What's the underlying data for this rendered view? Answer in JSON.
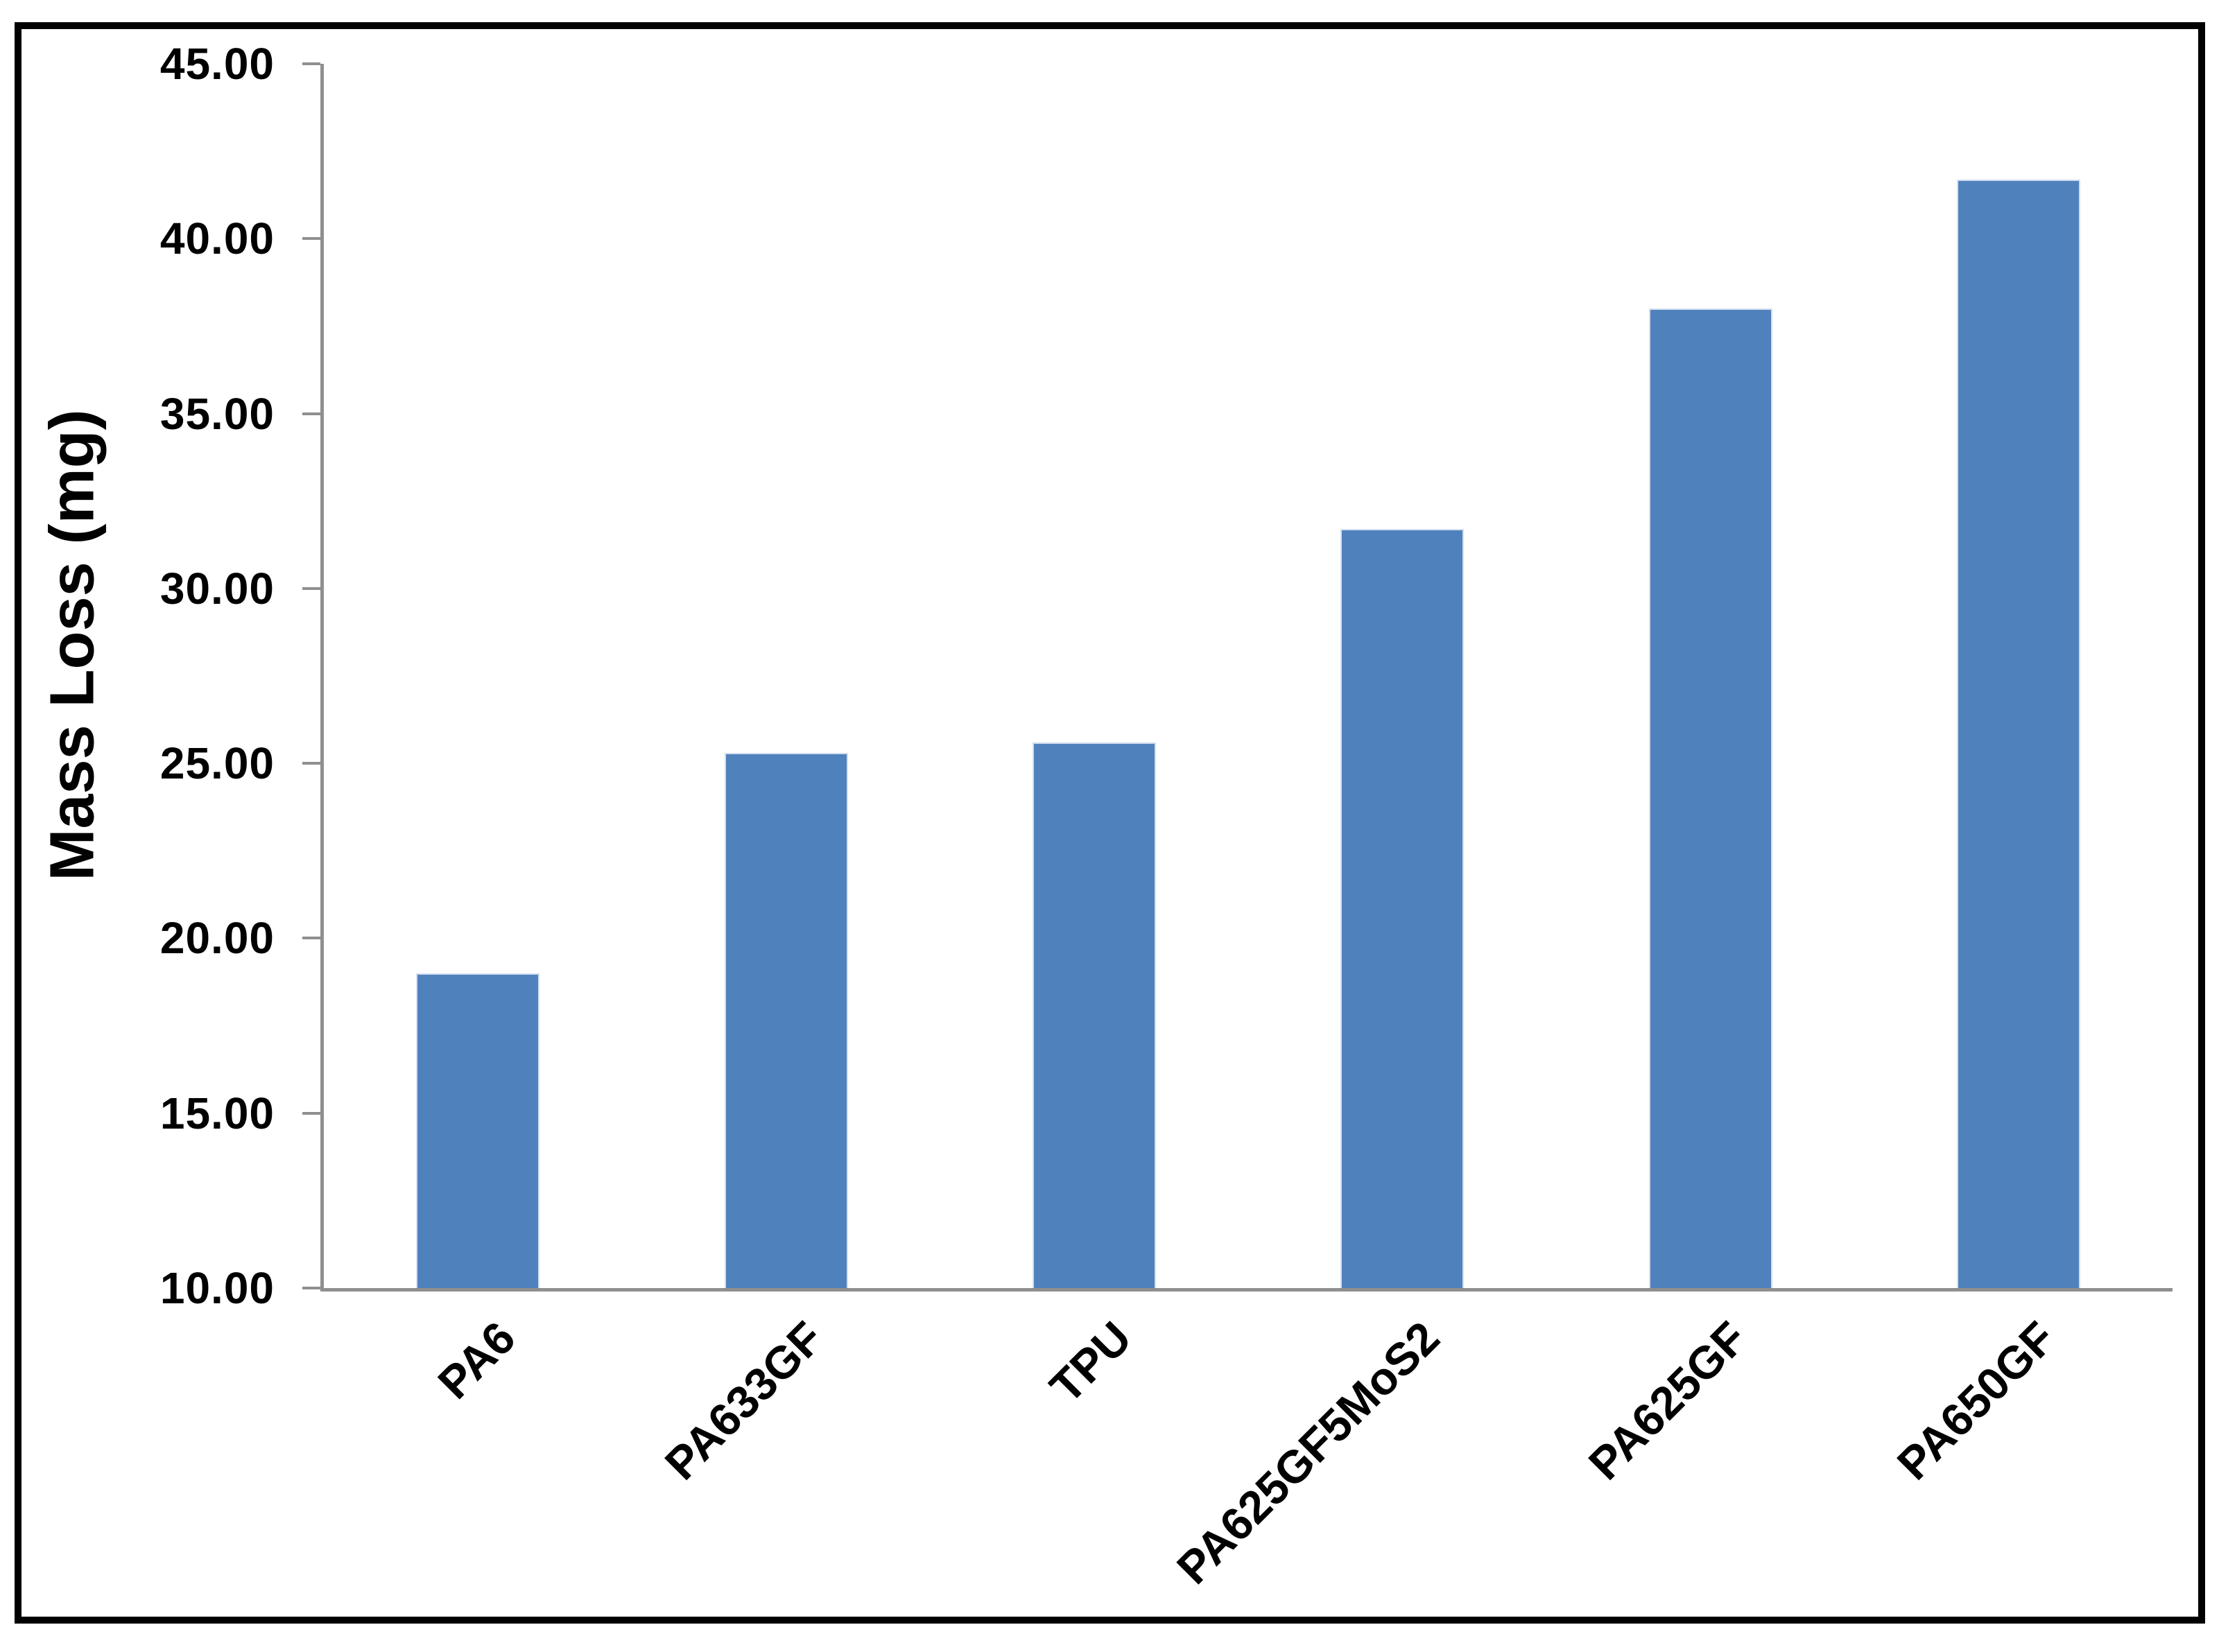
{
  "figure": {
    "background": "#FFFFFF",
    "border_color": "#000000"
  },
  "chart_data": {
    "type": "bar",
    "title": "",
    "xlabel": "",
    "ylabel": "Mass Loss (mg)",
    "categories": [
      "PA6",
      "PA633GF",
      "TPU",
      "PA625GF5MoS2",
      "PA625GF",
      "PA650GF"
    ],
    "values": [
      19.0,
      25.3,
      25.6,
      31.7,
      38.0,
      41.7
    ],
    "ylim": [
      10,
      45
    ],
    "yticks": [
      45,
      40,
      35,
      30,
      25,
      20,
      15,
      10
    ],
    "ytick_labels": [
      "45.00",
      "40.00",
      "35.00",
      "30.00",
      "25.00",
      "20.00",
      "15.00",
      "10.00"
    ],
    "bar_color": "#4F81BD",
    "bar_edge_color": "#D3DFEE",
    "axis_color": "#8F8F8F",
    "text_color": "#000000",
    "grid": false,
    "legend_position": "none"
  }
}
